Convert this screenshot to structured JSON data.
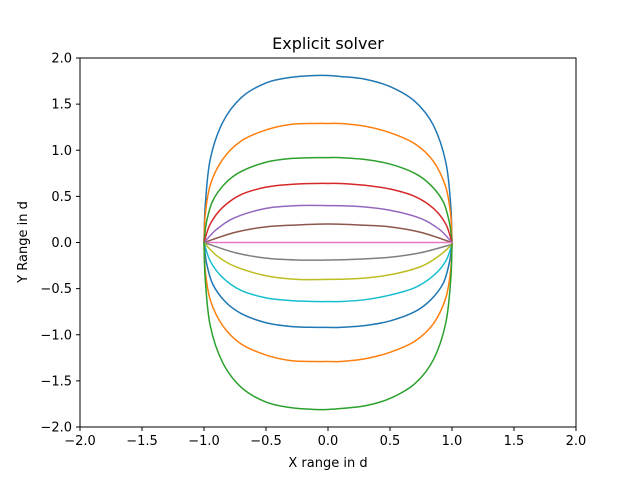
{
  "chart_data": {
    "type": "line",
    "title": "Explicit solver",
    "xlabel": "X range in d",
    "ylabel": "Y Range in d",
    "xlim": [
      -2.0,
      2.0
    ],
    "ylim": [
      -2.0,
      2.0
    ],
    "x_ticks": [
      "−2.0",
      "−1.5",
      "−1.0",
      "−0.5",
      "0.0",
      "0.5",
      "1.0",
      "1.5",
      "2.0"
    ],
    "x_tick_values": [
      -2.0,
      -1.5,
      -1.0,
      -0.5,
      0.0,
      0.5,
      1.0,
      1.5,
      2.0
    ],
    "y_ticks": [
      "−2.0",
      "−1.5",
      "−1.0",
      "−0.5",
      "0.0",
      "0.5",
      "1.0",
      "1.5",
      "2.0"
    ],
    "y_tick_values": [
      -2.0,
      -1.5,
      -1.0,
      -0.5,
      0.0,
      0.5,
      1.0,
      1.5,
      2.0
    ],
    "grid": false,
    "legend": false,
    "series": [
      {
        "color": "#1f77b4",
        "x": [
          -1.0,
          -0.99,
          -0.95,
          -0.85,
          -0.7,
          -0.5,
          -0.3,
          -0.1,
          0.0,
          0.1,
          0.3,
          0.5,
          0.7,
          0.85,
          0.95,
          0.99,
          1.0
        ],
        "y": [
          0.0,
          0.4,
          0.9,
          1.3,
          1.57,
          1.73,
          1.79,
          1.81,
          1.81,
          1.8,
          1.77,
          1.69,
          1.53,
          1.27,
          0.87,
          0.4,
          0.0
        ]
      },
      {
        "color": "#ff7f0e",
        "x": [
          -1.0,
          -0.99,
          -0.95,
          -0.85,
          -0.7,
          -0.5,
          -0.3,
          -0.1,
          0.0,
          0.1,
          0.3,
          0.5,
          0.7,
          0.85,
          0.95,
          0.99,
          1.0
        ],
        "y": [
          0.0,
          0.3,
          0.62,
          0.9,
          1.1,
          1.22,
          1.28,
          1.29,
          1.29,
          1.29,
          1.26,
          1.19,
          1.07,
          0.88,
          0.6,
          0.29,
          0.0
        ]
      },
      {
        "color": "#2ca02c",
        "x": [
          -1.0,
          -0.98,
          -0.93,
          -0.83,
          -0.7,
          -0.5,
          -0.3,
          -0.1,
          0.0,
          0.1,
          0.3,
          0.5,
          0.7,
          0.83,
          0.93,
          0.98,
          1.0
        ],
        "y": [
          0.0,
          0.22,
          0.45,
          0.64,
          0.77,
          0.87,
          0.91,
          0.92,
          0.92,
          0.92,
          0.9,
          0.85,
          0.75,
          0.62,
          0.44,
          0.21,
          0.0
        ]
      },
      {
        "color": "#d62728",
        "x": [
          -1.0,
          -0.95,
          -0.85,
          -0.7,
          -0.5,
          -0.3,
          -0.1,
          0.0,
          0.1,
          0.3,
          0.5,
          0.7,
          0.85,
          0.95,
          1.0
        ],
        "y": [
          0.0,
          0.2,
          0.38,
          0.52,
          0.6,
          0.63,
          0.64,
          0.64,
          0.64,
          0.62,
          0.58,
          0.5,
          0.37,
          0.2,
          0.0
        ]
      },
      {
        "color": "#9467bd",
        "x": [
          -1.0,
          -0.9,
          -0.75,
          -0.5,
          -0.25,
          0.0,
          0.25,
          0.5,
          0.75,
          0.9,
          1.0
        ],
        "y": [
          0.0,
          0.14,
          0.27,
          0.37,
          0.4,
          0.4,
          0.39,
          0.35,
          0.26,
          0.14,
          0.0
        ]
      },
      {
        "color": "#8c564b",
        "x": [
          -1.0,
          -0.75,
          -0.5,
          -0.25,
          0.0,
          0.25,
          0.5,
          0.75,
          1.0
        ],
        "y": [
          0.0,
          0.11,
          0.17,
          0.19,
          0.2,
          0.19,
          0.17,
          0.11,
          0.0
        ]
      },
      {
        "color": "#e377c2",
        "x": [
          -1.0,
          1.0
        ],
        "y": [
          0.0,
          0.0
        ]
      },
      {
        "color": "#7f7f7f",
        "x": [
          -1.0,
          -0.75,
          -0.5,
          -0.25,
          0.0,
          0.25,
          0.5,
          0.75,
          1.0
        ],
        "y": [
          0.0,
          -0.11,
          -0.17,
          -0.19,
          -0.19,
          -0.18,
          -0.16,
          -0.11,
          -0.02
        ]
      },
      {
        "color": "#bcbd22",
        "x": [
          -1.0,
          -0.9,
          -0.75,
          -0.5,
          -0.25,
          0.0,
          0.25,
          0.5,
          0.75,
          0.9,
          1.0
        ],
        "y": [
          0.0,
          -0.14,
          -0.26,
          -0.36,
          -0.4,
          -0.4,
          -0.39,
          -0.35,
          -0.26,
          -0.14,
          -0.02
        ]
      },
      {
        "color": "#17becf",
        "x": [
          -1.0,
          -0.95,
          -0.85,
          -0.7,
          -0.5,
          -0.3,
          -0.1,
          0.0,
          0.1,
          0.3,
          0.5,
          0.7,
          0.85,
          0.95,
          1.0
        ],
        "y": [
          0.0,
          -0.2,
          -0.38,
          -0.52,
          -0.6,
          -0.63,
          -0.64,
          -0.64,
          -0.64,
          -0.62,
          -0.57,
          -0.49,
          -0.36,
          -0.2,
          -0.02
        ]
      },
      {
        "color": "#1f77b4",
        "x": [
          -1.0,
          -0.98,
          -0.93,
          -0.83,
          -0.7,
          -0.5,
          -0.3,
          -0.1,
          0.0,
          0.1,
          0.3,
          0.5,
          0.7,
          0.83,
          0.93,
          0.98,
          1.0
        ],
        "y": [
          0.0,
          -0.22,
          -0.45,
          -0.64,
          -0.77,
          -0.87,
          -0.91,
          -0.92,
          -0.92,
          -0.92,
          -0.9,
          -0.85,
          -0.75,
          -0.62,
          -0.44,
          -0.21,
          -0.02
        ]
      },
      {
        "color": "#ff7f0e",
        "x": [
          -1.0,
          -0.99,
          -0.95,
          -0.85,
          -0.7,
          -0.5,
          -0.3,
          -0.1,
          0.0,
          0.1,
          0.3,
          0.5,
          0.7,
          0.85,
          0.95,
          0.99,
          1.0
        ],
        "y": [
          0.0,
          -0.3,
          -0.62,
          -0.9,
          -1.1,
          -1.22,
          -1.28,
          -1.29,
          -1.29,
          -1.29,
          -1.26,
          -1.19,
          -1.07,
          -0.88,
          -0.6,
          -0.29,
          -0.02
        ]
      },
      {
        "color": "#2ca02c",
        "x": [
          -1.0,
          -0.99,
          -0.95,
          -0.85,
          -0.7,
          -0.5,
          -0.3,
          -0.1,
          0.0,
          0.1,
          0.3,
          0.5,
          0.7,
          0.85,
          0.95,
          0.99,
          1.0
        ],
        "y": [
          0.0,
          -0.4,
          -0.9,
          -1.3,
          -1.57,
          -1.73,
          -1.79,
          -1.81,
          -1.81,
          -1.8,
          -1.77,
          -1.69,
          -1.53,
          -1.27,
          -0.87,
          -0.4,
          -0.02
        ]
      }
    ]
  }
}
